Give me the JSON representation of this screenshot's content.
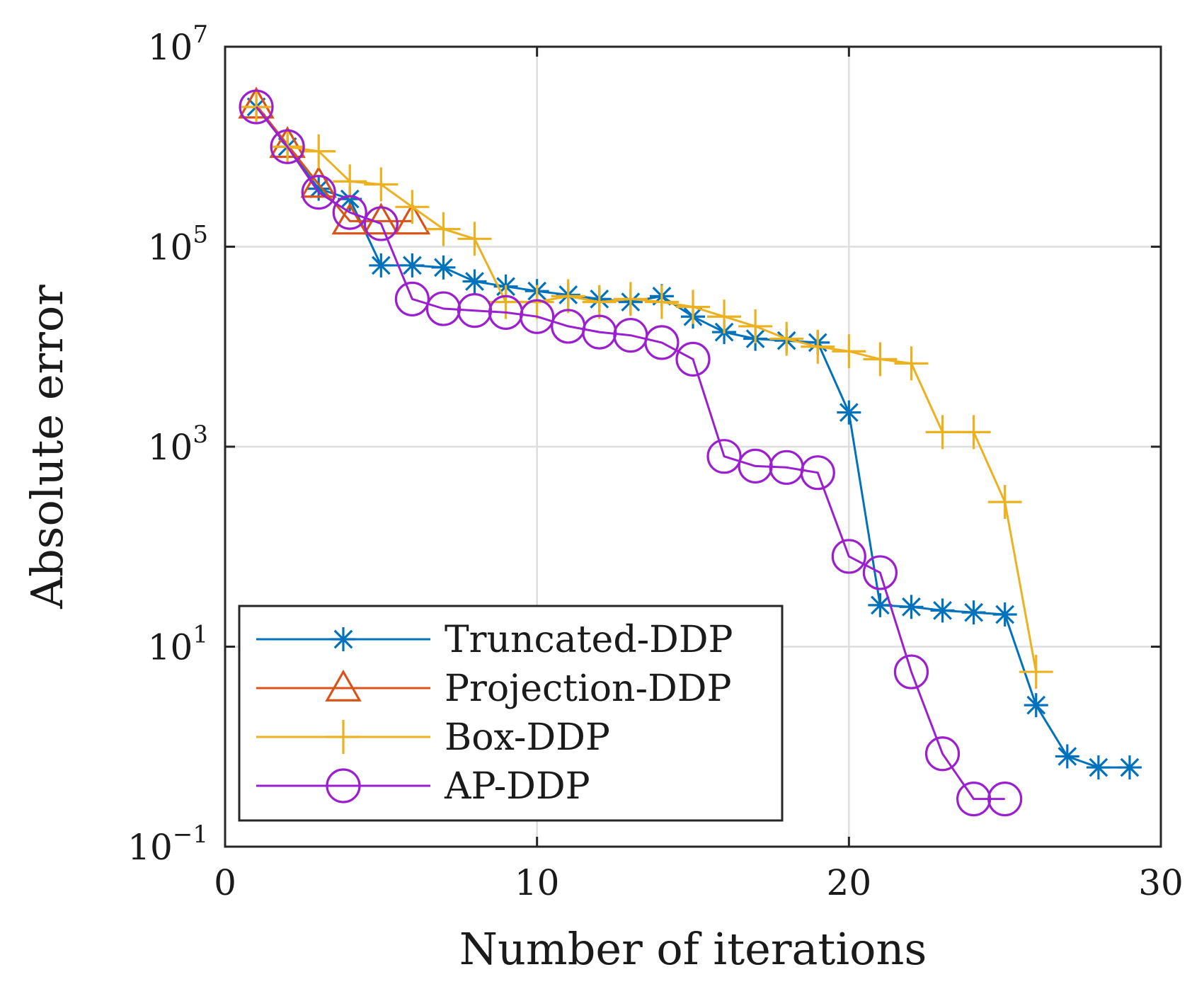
{
  "chart_data": {
    "type": "line",
    "title": "",
    "xlabel": "Number of iterations",
    "ylabel": "Absolute error",
    "xlim": [
      0,
      30
    ],
    "ylim": [
      0.1,
      10000000
    ],
    "yscale": "log",
    "grid": true,
    "legend_position": "bottom-left",
    "x_ticks": [
      {
        "value": 0,
        "label": "0"
      },
      {
        "value": 10,
        "label": "10"
      },
      {
        "value": 20,
        "label": "20"
      },
      {
        "value": 30,
        "label": "30"
      }
    ],
    "y_ticks": [
      {
        "value": 0.1,
        "base": "10",
        "exp": "−1"
      },
      {
        "value": 10,
        "base": "10",
        "exp": "1"
      },
      {
        "value": 1000,
        "base": "10",
        "exp": "3"
      },
      {
        "value": 100000,
        "base": "10",
        "exp": "5"
      },
      {
        "value": 10000000,
        "base": "10",
        "exp": "7"
      }
    ],
    "series": [
      {
        "name": "Truncated-DDP",
        "color": "#0072BD",
        "marker": "asterisk",
        "x": [
          1,
          2,
          3,
          4,
          5,
          6,
          7,
          8,
          9,
          10,
          11,
          12,
          13,
          14,
          15,
          16,
          17,
          18,
          19,
          20,
          21,
          22,
          23,
          24,
          25,
          26,
          27,
          28,
          29
        ],
        "y": [
          2500000,
          1000000,
          380000,
          300000,
          65000,
          65000,
          62000,
          45000,
          40000,
          36000,
          33000,
          30000,
          28000,
          32000,
          20000,
          14000,
          12000,
          11500,
          11000,
          2200,
          26,
          25,
          23,
          22,
          21,
          2.6,
          0.8,
          0.62,
          0.62
        ]
      },
      {
        "name": "Projection-DDP",
        "color": "#D95319",
        "marker": "triangle",
        "x": [
          1,
          2,
          3,
          4,
          5,
          6
        ],
        "y": [
          2600000,
          1050000,
          420000,
          180000,
          180000,
          180000
        ]
      },
      {
        "name": "Box-DDP",
        "color": "#EDB120",
        "marker": "plus",
        "x": [
          1,
          2,
          3,
          4,
          5,
          6,
          7,
          8,
          9,
          10,
          11,
          12,
          13,
          14,
          15,
          16,
          17,
          18,
          19,
          20,
          21,
          22,
          23,
          24,
          25,
          26
        ],
        "y": [
          2500000,
          1000000,
          900000,
          450000,
          420000,
          250000,
          150000,
          120000,
          28000,
          28000,
          32000,
          28000,
          30000,
          28000,
          25000,
          20000,
          16000,
          12000,
          10000,
          9000,
          7500,
          6800,
          1400,
          1400,
          280,
          5.6
        ]
      },
      {
        "name": "AP-DDP",
        "color": "#9B1FCF",
        "marker": "circle",
        "x": [
          1,
          2,
          3,
          4,
          5,
          6,
          7,
          8,
          9,
          10,
          11,
          12,
          13,
          14,
          15,
          16,
          17,
          18,
          19,
          20,
          21,
          22,
          23,
          24,
          25
        ],
        "y": [
          2500000,
          1000000,
          350000,
          220000,
          170000,
          30000,
          24000,
          23000,
          22000,
          20000,
          16000,
          14000,
          13000,
          11000,
          7500,
          800,
          640,
          620,
          550,
          80,
          55,
          5.6,
          0.85,
          0.3,
          0.3
        ]
      }
    ]
  }
}
